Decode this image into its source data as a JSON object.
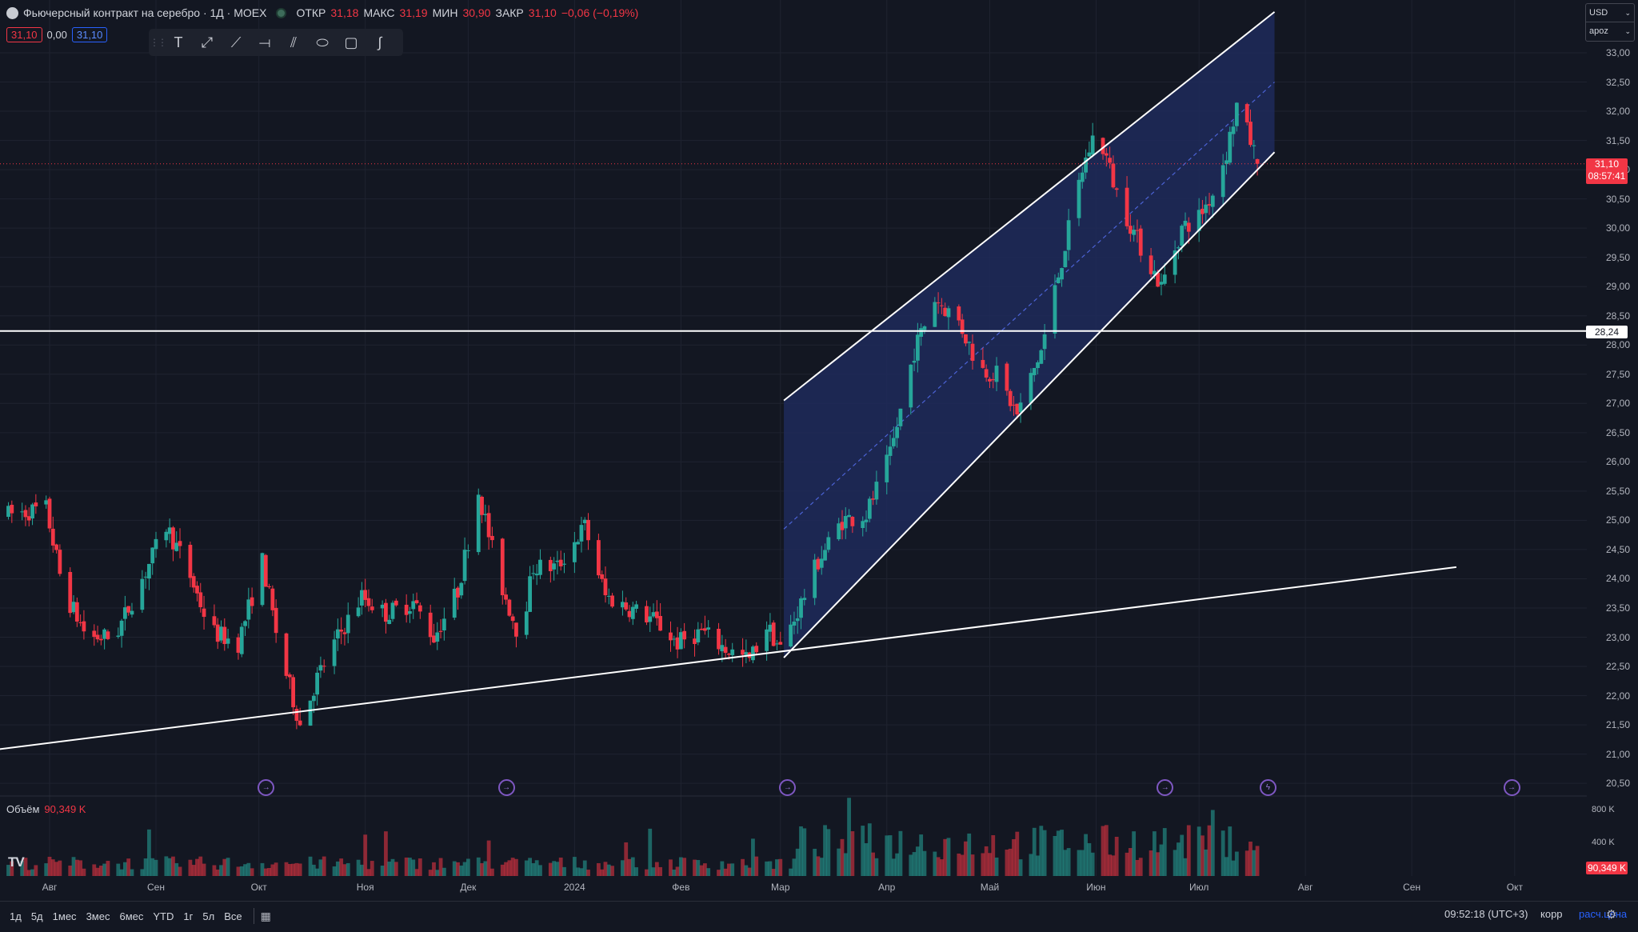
{
  "header": {
    "title": "Фьючерсный контракт на серебро · 1Д · MOEX",
    "open_label": "ОТКР",
    "open": "31,18",
    "high_label": "МАКС",
    "high": "31,19",
    "low_label": "МИН",
    "low": "30,90",
    "close_label": "ЗАКР",
    "close": "31,10",
    "change": "−0,06 (−0,19%)"
  },
  "pills": {
    "bid": "31,10",
    "spread": "0,00",
    "ask": "31,10"
  },
  "toolbar": {
    "icons": [
      "grip-icon",
      "text-icon",
      "ray-icon",
      "trend-line-icon",
      "horizontal-ray-icon",
      "channel-icon",
      "ellipse-icon",
      "rectangle-icon",
      "path-icon"
    ]
  },
  "currency": {
    "value": "USD",
    "mode": "apoz"
  },
  "price_tag": {
    "price": "31,10",
    "countdown": "08:57:41"
  },
  "line_tag": "28,24",
  "volume": {
    "label": "Объём",
    "value": "90,349 K",
    "tag": "90,349 K",
    "ticks": [
      "800 K",
      "400 K"
    ]
  },
  "bottom": {
    "ranges": [
      "1д",
      "5д",
      "1мес",
      "3мес",
      "6мес",
      "YTD",
      "1г",
      "5л",
      "Все"
    ],
    "clock": "09:52:18 (UTC+3)",
    "corr": "корр",
    "calc": "расч.цена"
  },
  "colors": {
    "up": "#26a69a",
    "down": "#f23645",
    "channel_fill": "#1e2a5a",
    "line": "#ffffff"
  },
  "chart_data": {
    "type": "candlestick",
    "price_ticks": [
      "33,00",
      "32,50",
      "32,00",
      "31,50",
      "31,00",
      "30,50",
      "30,00",
      "29,50",
      "29,00",
      "28,50",
      "28,00",
      "27,50",
      "27,00",
      "26,50",
      "26,00",
      "25,50",
      "25,00",
      "24,50",
      "24,00",
      "23,50",
      "23,00",
      "22,50",
      "22,00",
      "21,50",
      "21,00",
      "20,50"
    ],
    "ylim": [
      20.3,
      33.3
    ],
    "month_labels": [
      {
        "label": "Авг",
        "date": "2023-08-01"
      },
      {
        "label": "Сен",
        "date": "2023-09-01"
      },
      {
        "label": "Окт",
        "date": "2023-10-01"
      },
      {
        "label": "Ноя",
        "date": "2023-11-01"
      },
      {
        "label": "Дек",
        "date": "2023-12-01"
      },
      {
        "label": "2024",
        "date": "2024-01-01"
      },
      {
        "label": "Фев",
        "date": "2024-02-01"
      },
      {
        "label": "Мар",
        "date": "2024-03-01"
      },
      {
        "label": "Апр",
        "date": "2024-04-01"
      },
      {
        "label": "Май",
        "date": "2024-05-01"
      },
      {
        "label": "Июн",
        "date": "2024-06-01"
      },
      {
        "label": "Июл",
        "date": "2024-07-01"
      },
      {
        "label": "Авг",
        "date": "2024-08-01"
      },
      {
        "label": "Сен",
        "date": "2024-09-01"
      },
      {
        "label": "Окт",
        "date": "2024-10-01"
      }
    ],
    "anchors": [
      [
        "2023-07-20",
        25.1
      ],
      [
        "2023-07-31",
        25.2
      ],
      [
        "2023-08-05",
        23.8
      ],
      [
        "2023-08-12",
        23.0
      ],
      [
        "2023-08-20",
        23.0
      ],
      [
        "2023-08-28",
        24.0
      ],
      [
        "2023-09-04",
        24.9
      ],
      [
        "2023-09-10",
        24.2
      ],
      [
        "2023-09-17",
        23.1
      ],
      [
        "2023-09-25",
        22.9
      ],
      [
        "2023-10-02",
        24.3
      ],
      [
        "2023-10-07",
        22.8
      ],
      [
        "2023-10-13",
        21.5
      ],
      [
        "2023-10-18",
        22.3
      ],
      [
        "2023-10-24",
        23.0
      ],
      [
        "2023-10-31",
        23.7
      ],
      [
        "2023-11-07",
        23.4
      ],
      [
        "2023-11-15",
        23.6
      ],
      [
        "2023-11-21",
        23.0
      ],
      [
        "2023-11-28",
        23.8
      ],
      [
        "2023-12-04",
        25.5
      ],
      [
        "2023-12-10",
        24.0
      ],
      [
        "2023-12-16",
        23.0
      ],
      [
        "2023-12-20",
        24.2
      ],
      [
        "2023-12-27",
        24.2
      ],
      [
        "2024-01-04",
        24.9
      ],
      [
        "2024-01-10",
        23.7
      ],
      [
        "2024-01-17",
        23.5
      ],
      [
        "2024-01-24",
        23.3
      ],
      [
        "2024-01-31",
        22.9
      ],
      [
        "2024-02-07",
        23.1
      ],
      [
        "2024-02-14",
        22.8
      ],
      [
        "2024-02-21",
        22.6
      ],
      [
        "2024-02-26",
        23.2
      ],
      [
        "2024-03-01",
        22.8
      ],
      [
        "2024-03-05",
        23.3
      ],
      [
        "2024-03-12",
        24.3
      ],
      [
        "2024-03-19",
        25.0
      ],
      [
        "2024-03-26",
        25.1
      ],
      [
        "2024-04-02",
        26.1
      ],
      [
        "2024-04-09",
        27.9
      ],
      [
        "2024-04-15",
        28.8
      ],
      [
        "2024-04-22",
        28.4
      ],
      [
        "2024-04-28",
        27.6
      ],
      [
        "2024-05-03",
        27.5
      ],
      [
        "2024-05-09",
        26.8
      ],
      [
        "2024-05-16",
        27.9
      ],
      [
        "2024-05-21",
        29.2
      ],
      [
        "2024-05-28",
        31.0
      ],
      [
        "2024-06-01",
        31.7
      ],
      [
        "2024-06-04",
        31.2
      ],
      [
        "2024-06-07",
        30.6
      ],
      [
        "2024-06-13",
        29.8
      ],
      [
        "2024-06-20",
        29.0
      ],
      [
        "2024-06-26",
        30.0
      ],
      [
        "2024-07-01",
        30.2
      ],
      [
        "2024-07-05",
        30.6
      ],
      [
        "2024-07-09",
        31.3
      ],
      [
        "2024-07-12",
        32.1
      ],
      [
        "2024-07-16",
        31.5
      ],
      [
        "2024-07-18",
        31.1
      ]
    ],
    "annotations": {
      "horizontal_line": 28.24,
      "support_trendline": [
        [
          "2023-07-06",
          21.0
        ],
        [
          "2024-09-14",
          24.2
        ]
      ],
      "parallel_channel": {
        "upper": [
          [
            "2024-03-02",
            27.05
          ],
          [
            "2024-07-23",
            33.7
          ]
        ],
        "lower": [
          [
            "2024-03-02",
            22.65
          ],
          [
            "2024-07-23",
            31.3
          ]
        ]
      }
    },
    "events": [
      "2023-10-03",
      "2023-12-12",
      "2024-03-03",
      "2024-06-21",
      "2024-07-21",
      "2024-09-30"
    ]
  }
}
